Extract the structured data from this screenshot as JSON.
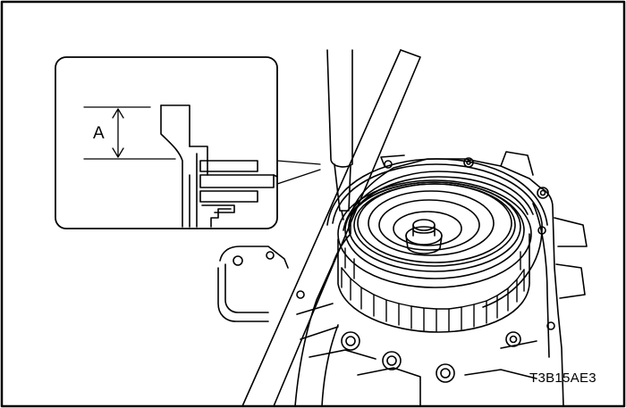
{
  "diagram": {
    "dimension_label": "A",
    "figure_code": "T3B15AE3"
  },
  "colors": {
    "line": "#000000",
    "background": "#ffffff"
  }
}
